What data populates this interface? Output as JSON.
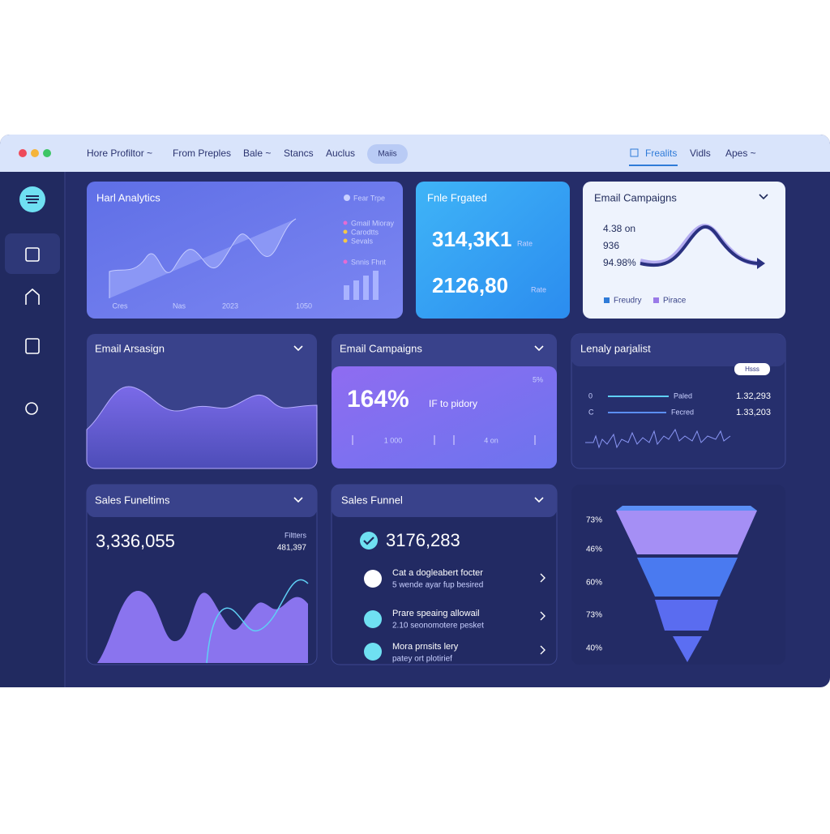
{
  "nav": {
    "left": [
      "Hore Profiltor ~",
      "From Preples",
      "Bale ~",
      "Stancs",
      "Auclus"
    ],
    "pill": "Maiis",
    "right": [
      "Frealits",
      "Vidls",
      "Apes ~"
    ]
  },
  "analytics": {
    "title": "Harl Analytics",
    "legend_title": "Fear Trpe",
    "legend": [
      "Gmail Mioray",
      "Carodtts",
      "Sevals"
    ],
    "bar_label": "Snnis Fhnt",
    "x_labels": [
      "Cres",
      "Nas",
      "2023",
      "1050"
    ]
  },
  "frgated": {
    "title": "Fnle Frgated",
    "value1": "314,3K1",
    "note1": "Rate",
    "value2": "2126,80",
    "note2": "Rate"
  },
  "campaigns_top": {
    "title": "Email Campaigns",
    "lines": [
      "4.38 on",
      "936",
      "94.98%"
    ],
    "legend": [
      "Freudry",
      "Pirace"
    ]
  },
  "arsasign": {
    "title": "Email Arsasign"
  },
  "campaigns_mid": {
    "title": "Email Campaigns",
    "value": "164%",
    "caption": "IF to pidory",
    "corner": "5%",
    "ticks": [
      "1 000",
      "4 on"
    ]
  },
  "parjalist": {
    "title": "Lenaly parjalist",
    "badge": "Hsss",
    "rows": [
      [
        "0",
        "Paled",
        "1.32,293"
      ],
      [
        "C",
        "Fecred",
        "1.33,203"
      ]
    ]
  },
  "funeltims": {
    "title": "Sales Funeltims",
    "value": "3,336,055",
    "side_label": "Filtters",
    "side_value": "481,397"
  },
  "funnel_list": {
    "title": "Sales Funnel",
    "value": "3176,283",
    "items": [
      [
        "Cat a dogleabert focter",
        "5 wende ayar fup besired"
      ],
      [
        "Prare speaing allowail",
        "2.10 seonomotere pesket"
      ],
      [
        "Mora prnsits lery",
        "patey ort plotirief"
      ]
    ]
  },
  "funnel": {
    "labels": [
      "73%",
      "46%",
      "60%",
      "73%",
      "40%"
    ]
  }
}
